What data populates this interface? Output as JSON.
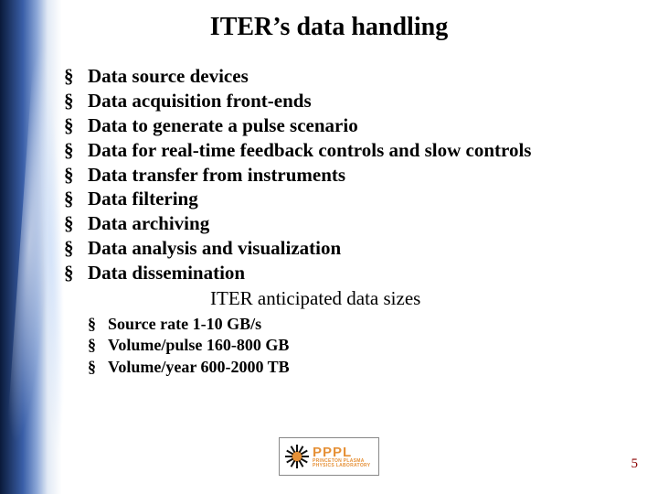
{
  "title": "ITER’s data handling",
  "main_items": [
    "Data source devices",
    "Data acquisition front-ends",
    "Data to generate a pulse scenario",
    "Data for real-time feedback controls and slow controls",
    "Data transfer from instruments",
    "Data filtering",
    "Data archiving",
    "Data analysis and visualization",
    "Data dissemination"
  ],
  "subtitle": "ITER anticipated data sizes",
  "sub_items": [
    "Source rate 1-10 GB/s",
    "Volume/pulse 160-800 GB",
    "Volume/year 600-2000 TB"
  ],
  "logo": {
    "acronym": "PPPL",
    "line1": "PRINCETON PLASMA",
    "line2": "PHYSICS LABORATORY",
    "sun_color": "#e69138",
    "ray_color": "#111111",
    "text_color": "#e69138"
  },
  "page_number": "5",
  "colors": {
    "title": "#000000",
    "body": "#000000",
    "pagenum": "#8b0000",
    "bg_strip_dark": "#0a1a3a",
    "bg_strip_mid": "#3a5fa8",
    "bg_strip_light": "#e2eaf5"
  }
}
